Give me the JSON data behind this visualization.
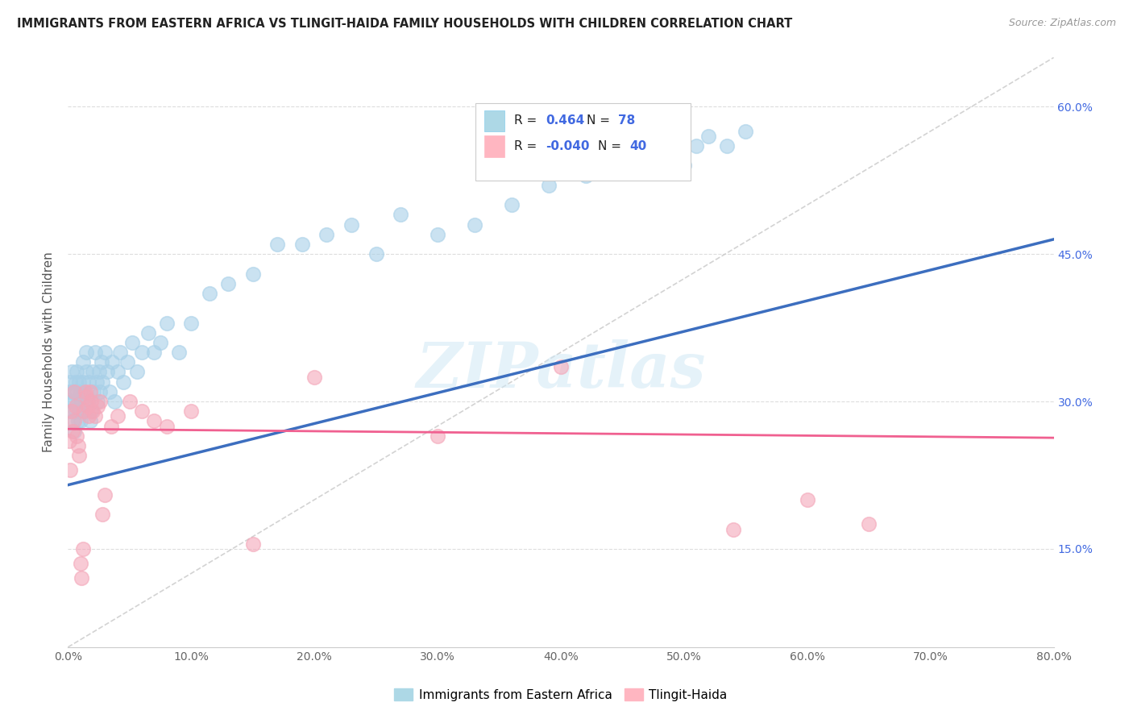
{
  "title": "IMMIGRANTS FROM EASTERN AFRICA VS TLINGIT-HAIDA FAMILY HOUSEHOLDS WITH CHILDREN CORRELATION CHART",
  "source": "Source: ZipAtlas.com",
  "ylabel": "Family Households with Children",
  "xlim": [
    0.0,
    0.8
  ],
  "ylim": [
    0.05,
    0.65
  ],
  "x_tick_vals": [
    0.0,
    0.1,
    0.2,
    0.3,
    0.4,
    0.5,
    0.6,
    0.7,
    0.8
  ],
  "x_tick_labels": [
    "0.0%",
    "10.0%",
    "20.0%",
    "30.0%",
    "40.0%",
    "50.0%",
    "60.0%",
    "70.0%",
    "80.0%"
  ],
  "y_tick_vals": [
    0.15,
    0.3,
    0.45,
    0.6
  ],
  "y_tick_labels": [
    "15.0%",
    "30.0%",
    "45.0%",
    "60.0%"
  ],
  "blue_scatter_color": "#A8D0E8",
  "pink_scatter_color": "#F4A7B9",
  "blue_line_color": "#3C6EBF",
  "pink_line_color": "#F06090",
  "dashed_color": "#C8C8C8",
  "grid_color": "#DDDDDD",
  "watermark_text": "ZIPatlas",
  "watermark_color": "#D0E8F5",
  "legend_r1": "R =  0.464",
  "legend_n1": "N = 78",
  "legend_r2": "R = -0.040",
  "legend_n2": "N = 40",
  "blue_line_x0": 0.0,
  "blue_line_y0": 0.215,
  "blue_line_x1": 0.8,
  "blue_line_y1": 0.465,
  "pink_line_x0": 0.0,
  "pink_line_y0": 0.272,
  "pink_line_x1": 0.8,
  "pink_line_y1": 0.263,
  "blue_x": [
    0.001,
    0.002,
    0.002,
    0.003,
    0.003,
    0.004,
    0.004,
    0.005,
    0.005,
    0.006,
    0.006,
    0.007,
    0.007,
    0.008,
    0.008,
    0.009,
    0.009,
    0.01,
    0.01,
    0.011,
    0.012,
    0.012,
    0.013,
    0.014,
    0.015,
    0.015,
    0.016,
    0.017,
    0.018,
    0.019,
    0.02,
    0.021,
    0.022,
    0.023,
    0.024,
    0.025,
    0.026,
    0.027,
    0.028,
    0.03,
    0.032,
    0.034,
    0.036,
    0.038,
    0.04,
    0.042,
    0.045,
    0.048,
    0.052,
    0.056,
    0.06,
    0.065,
    0.07,
    0.075,
    0.08,
    0.09,
    0.1,
    0.115,
    0.13,
    0.15,
    0.17,
    0.19,
    0.21,
    0.23,
    0.25,
    0.27,
    0.3,
    0.33,
    0.36,
    0.39,
    0.42,
    0.45,
    0.48,
    0.5,
    0.51,
    0.52,
    0.535,
    0.55
  ],
  "blue_y": [
    0.31,
    0.29,
    0.32,
    0.3,
    0.33,
    0.28,
    0.31,
    0.27,
    0.3,
    0.32,
    0.29,
    0.31,
    0.33,
    0.28,
    0.3,
    0.32,
    0.29,
    0.31,
    0.28,
    0.3,
    0.32,
    0.34,
    0.31,
    0.29,
    0.33,
    0.35,
    0.3,
    0.32,
    0.28,
    0.29,
    0.33,
    0.31,
    0.35,
    0.32,
    0.3,
    0.33,
    0.31,
    0.34,
    0.32,
    0.35,
    0.33,
    0.31,
    0.34,
    0.3,
    0.33,
    0.35,
    0.32,
    0.34,
    0.36,
    0.33,
    0.35,
    0.37,
    0.35,
    0.36,
    0.38,
    0.35,
    0.38,
    0.41,
    0.42,
    0.43,
    0.46,
    0.46,
    0.47,
    0.48,
    0.45,
    0.49,
    0.47,
    0.48,
    0.5,
    0.52,
    0.53,
    0.55,
    0.54,
    0.54,
    0.56,
    0.57,
    0.56,
    0.575
  ],
  "pink_x": [
    0.001,
    0.002,
    0.003,
    0.004,
    0.005,
    0.005,
    0.006,
    0.007,
    0.008,
    0.009,
    0.01,
    0.011,
    0.012,
    0.013,
    0.014,
    0.015,
    0.016,
    0.017,
    0.018,
    0.019,
    0.02,
    0.022,
    0.024,
    0.026,
    0.028,
    0.03,
    0.035,
    0.04,
    0.05,
    0.06,
    0.07,
    0.08,
    0.1,
    0.15,
    0.2,
    0.3,
    0.4,
    0.54,
    0.6,
    0.65
  ],
  "pink_y": [
    0.26,
    0.23,
    0.29,
    0.27,
    0.28,
    0.31,
    0.295,
    0.265,
    0.255,
    0.245,
    0.135,
    0.12,
    0.15,
    0.29,
    0.31,
    0.305,
    0.295,
    0.285,
    0.31,
    0.3,
    0.29,
    0.285,
    0.295,
    0.3,
    0.185,
    0.205,
    0.275,
    0.285,
    0.3,
    0.29,
    0.28,
    0.275,
    0.29,
    0.155,
    0.325,
    0.265,
    0.335,
    0.17,
    0.2,
    0.175
  ]
}
